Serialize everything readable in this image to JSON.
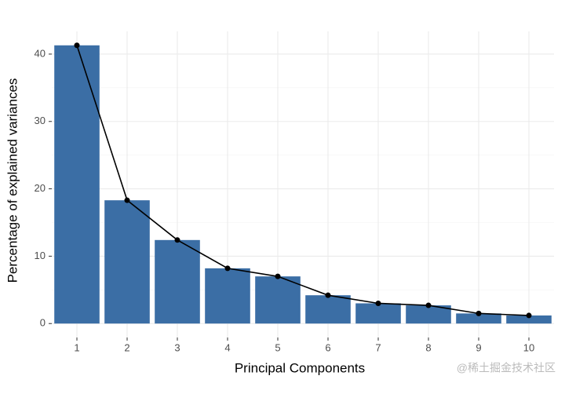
{
  "chart_data": {
    "type": "bar",
    "x_label": "Principal Components",
    "y_label": "Percentage of explained variances",
    "categories": [
      "1",
      "2",
      "3",
      "4",
      "5",
      "6",
      "7",
      "8",
      "9",
      "10"
    ],
    "values": [
      41.3,
      18.3,
      12.4,
      8.2,
      7.0,
      4.2,
      3.0,
      2.7,
      1.5,
      1.2
    ],
    "color": "#3b6ea5",
    "line": true,
    "line_color": "#000000",
    "ylim": [
      -2.07,
      43.37
    ],
    "yticks": [
      0,
      10,
      20,
      30,
      40
    ],
    "minor_yticks": [
      5,
      15,
      25,
      35
    ],
    "grid": true,
    "watermark": "@稀土掘金技术社区"
  }
}
